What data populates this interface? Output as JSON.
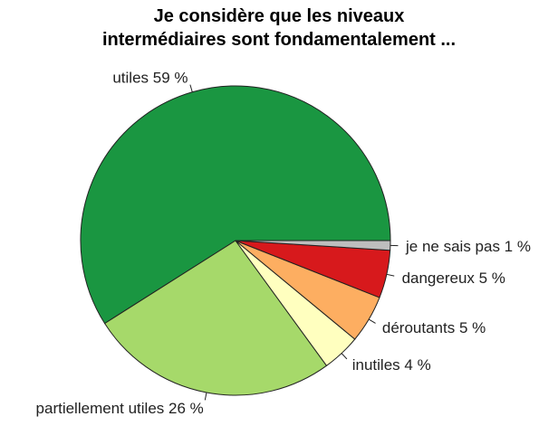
{
  "chart_data": {
    "type": "pie",
    "title": [
      "Je considère que les niveaux",
      "intermédiaires sont fondamentalement ..."
    ],
    "slices": [
      {
        "label": "utiles 59 %",
        "value": 59,
        "color": "#1a9641"
      },
      {
        "label": "partiellement utiles 26 %",
        "value": 26,
        "color": "#a6d96a"
      },
      {
        "label": "inutiles 4 %",
        "value": 4,
        "color": "#ffffbf"
      },
      {
        "label": "déroutants 5 %",
        "value": 5,
        "color": "#fdae61"
      },
      {
        "label": "dangereux 5 %",
        "value": 5,
        "color": "#d7191c"
      },
      {
        "label": "je ne sais pas 1 %",
        "value": 1,
        "color": "#bebebe"
      }
    ],
    "direction": "counterclockwise",
    "start": "3 o'clock"
  }
}
